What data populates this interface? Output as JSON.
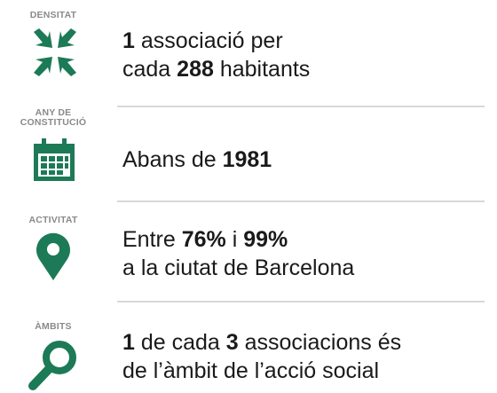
{
  "rows": [
    {
      "label": "DENSITAT",
      "lines": [
        [
          {
            "t": "1",
            "b": true
          },
          {
            "t": " associació per"
          }
        ],
        [
          {
            "t": "cada "
          },
          {
            "t": "288",
            "b": true
          },
          {
            "t": " habitants"
          }
        ]
      ]
    },
    {
      "label": "ANY DE\nCONSTITUCIÓ",
      "lines": [
        [
          {
            "t": "Abans de "
          },
          {
            "t": "1981",
            "b": true
          }
        ]
      ]
    },
    {
      "label": "ACTIVITAT",
      "lines": [
        [
          {
            "t": "Entre "
          },
          {
            "t": "76%",
            "b": true
          },
          {
            "t": " i "
          },
          {
            "t": "99%",
            "b": true
          }
        ],
        [
          {
            "t": "a la ciutat de Barcelona"
          }
        ]
      ]
    },
    {
      "label": "ÀMBITS",
      "lines": [
        [
          {
            "t": "1",
            "b": true
          },
          {
            "t": " de cada "
          },
          {
            "t": "3",
            "b": true
          },
          {
            "t": " associacions és"
          }
        ],
        [
          {
            "t": "de l’àmbit de l’acció social"
          }
        ]
      ]
    }
  ]
}
